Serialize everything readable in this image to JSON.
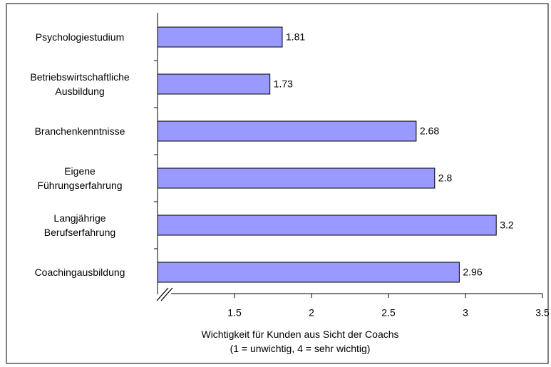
{
  "chart_data": {
    "type": "bar",
    "orientation": "horizontal",
    "categories": [
      "Psychologiestudium",
      "Betriebswirtschaftliche\nAusbildung",
      "Branchenkenntnisse",
      "Eigene\nFührungserfahrung",
      "Langjährige\nBerufserfahrung",
      "Coachingausbildung"
    ],
    "values": [
      1.81,
      1.73,
      2.68,
      2.8,
      3.2,
      2.96
    ],
    "color": "#9999ff",
    "xlim": [
      1,
      3.5
    ],
    "xticks": [
      1.5,
      2,
      2.5,
      3,
      3.5
    ],
    "xlabel": "Wichtigkeit für Kunden aus Sicht der Coachs\n(1 = unwichtig, 4 = sehr wichtig)"
  }
}
